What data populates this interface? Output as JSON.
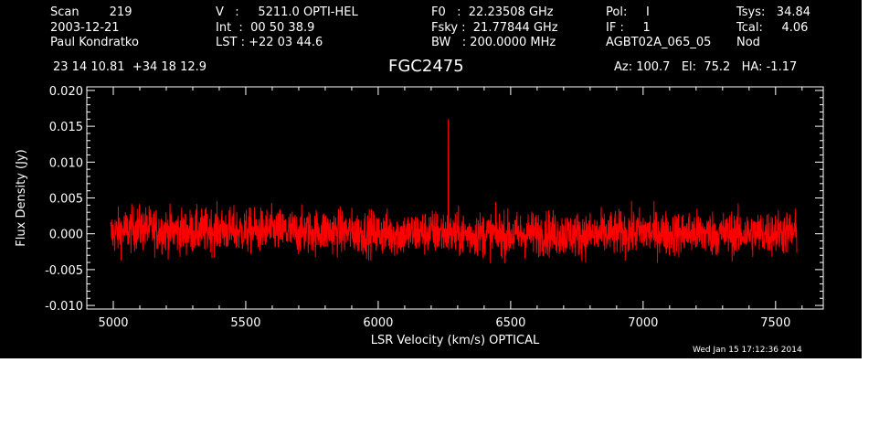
{
  "header": {
    "col1": [
      "Scan        219",
      "2003-12-21",
      "Paul Kondratko"
    ],
    "col2": [
      "V   :     5211.0 OPTI-HEL",
      "Int  :  00 50 38.9",
      "LST : +22 03 44.6"
    ],
    "col3": [
      "F0   :  22.23508 GHz",
      "Fsky :  21.77844 GHz",
      "BW   : 200.0000 MHz"
    ],
    "col4": [
      "Pol:     I",
      "IF :     1",
      "AGBT02A_065_05"
    ],
    "col5": [
      "Tsys:   34.84",
      "Tcal:     4.06",
      "Nod"
    ],
    "coords": "23 14 10.81  +34 18 12.9",
    "source": "FGC2475",
    "pointing": "Az: 100.7   El:  75.2   HA: -1.17",
    "timestamp": "Wed Jan 15 17:12:36 2014"
  },
  "colors": {
    "background": "#000000",
    "foreground": "#ffffff",
    "series": "#ff0000"
  },
  "chart_data": {
    "type": "line",
    "title": "FGC2475",
    "xlabel": "LSR Velocity (km/s) OPTICAL",
    "ylabel": "Flux Density (Jy)",
    "xlim": [
      4900,
      7680
    ],
    "ylim": [
      -0.0105,
      0.0205
    ],
    "xticks": [
      5000,
      5500,
      6000,
      6500,
      7000,
      7500
    ],
    "xtick_labels": [
      "5000",
      "5500",
      "6000",
      "6500",
      "7000",
      "7500"
    ],
    "yticks": [
      -0.01,
      -0.005,
      0.0,
      0.005,
      0.01,
      0.015,
      0.02
    ],
    "ytick_labels": [
      "-0.010",
      "-0.005",
      "0.000",
      "0.005",
      "0.010",
      "0.015",
      "0.020"
    ],
    "series": [
      {
        "x_range": [
          4990,
          7580
        ],
        "noise_peak_to_peak": [
          -0.006,
          0.006
        ],
        "spike": {
          "x": 6265,
          "y": 0.016
        },
        "points": [
          [
            4990,
            0.0
          ],
          [
            5050,
            0.0005
          ],
          [
            5100,
            0.0008
          ],
          [
            5200,
            0.0004
          ],
          [
            5300,
            0.0003
          ],
          [
            5400,
            0.0006
          ],
          [
            5500,
            0.0003
          ],
          [
            5600,
            0.0005
          ],
          [
            5700,
            0.0002
          ],
          [
            5800,
            0.0004
          ],
          [
            5900,
            0.0002
          ],
          [
            6000,
            0.0001
          ],
          [
            6100,
            0.0
          ],
          [
            6200,
            0.0002
          ],
          [
            6265,
            0.016
          ],
          [
            6300,
            -0.0001
          ],
          [
            6400,
            0.0
          ],
          [
            6500,
            -0.0002
          ],
          [
            6600,
            0.0001
          ],
          [
            6700,
            0.0
          ],
          [
            6800,
            -0.0002
          ],
          [
            6900,
            0.0001
          ],
          [
            7000,
            0.0003
          ],
          [
            7100,
            0.0
          ],
          [
            7200,
            0.0001
          ],
          [
            7300,
            0.0
          ],
          [
            7400,
            0.0
          ],
          [
            7500,
            0.0002
          ],
          [
            7580,
            0.0001
          ]
        ]
      }
    ]
  }
}
